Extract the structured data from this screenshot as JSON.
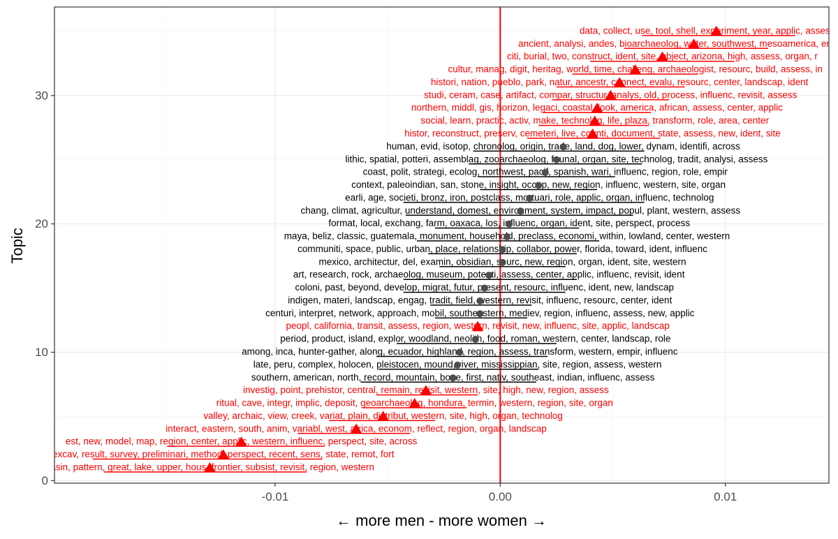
{
  "chart_data": {
    "type": "scatter",
    "title": "",
    "xlabel": "← more men  -  more women →",
    "ylabel": "Topic",
    "xlim": [
      -0.0198,
      0.0146
    ],
    "ylim": [
      -0.2,
      36.9
    ],
    "x_ticks": [
      {
        "value": -0.01,
        "label": "-0.01"
      },
      {
        "value": 0.0,
        "label": "0.00"
      },
      {
        "value": 0.01,
        "label": "0.01"
      }
    ],
    "y_ticks": [
      {
        "value": 0,
        "label": "0"
      },
      {
        "value": 10,
        "label": "10"
      },
      {
        "value": 20,
        "label": "20"
      },
      {
        "value": 30,
        "label": "30"
      }
    ],
    "reference_line": {
      "x": 0.0,
      "color": "#ff0000"
    },
    "grid": true,
    "colors": {
      "significant": "#ff0000",
      "not_significant": "#000000",
      "point": "#4d4d4d",
      "panel_border": "#333333",
      "grid_major": "#ebebeb",
      "grid_minor": "#f4f4f4"
    },
    "points": [
      {
        "topic": 1,
        "x": -0.0129,
        "lo": -0.0176,
        "hi": -0.0086,
        "significant": true,
        "label": "basin, pattern, great, lake, upper, hous, frontier, subsist, revisit, region, western"
      },
      {
        "topic": 2,
        "x": -0.0123,
        "lo": -0.0181,
        "hi": -0.0079,
        "significant": true,
        "label": "excav, result, survey, preliminari, method, perspect, recent, sens, state, remot, fort"
      },
      {
        "topic": 3,
        "x": -0.0115,
        "lo": -0.0148,
        "hi": -0.0078,
        "significant": true,
        "label": "est, new, model, map, region, center, applic, western, influenc, perspect, site, across"
      },
      {
        "topic": 4,
        "x": -0.0064,
        "lo": -0.009,
        "hi": -0.004,
        "significant": true,
        "label": "interact, eastern, south, anim, variabl, west, africa, econom, reflect, region, organ, landscap"
      },
      {
        "topic": 5,
        "x": -0.0052,
        "lo": -0.0076,
        "hi": -0.0029,
        "significant": true,
        "label": "valley, archaic, view, creek, variat, plain, distribut, western, site, high, organ, technolog"
      },
      {
        "topic": 6,
        "x": -0.0038,
        "lo": -0.0061,
        "hi": -0.0015,
        "significant": true,
        "label": "ritual, cave, integr, implic, deposit, geoarchaeolog, hondura, termin, western, region, site, organ"
      },
      {
        "topic": 7,
        "x": -0.0033,
        "lo": -0.0055,
        "hi": -0.001,
        "significant": true,
        "label": "investig, point, prehistor, central, remain, revisit, western, site, high, new, region, assess"
      },
      {
        "topic": 8,
        "x": -0.0021,
        "lo": -0.0062,
        "hi": 0.0016,
        "significant": false,
        "label": "southern, american, north, record, mountain, bone, first, nativ, southeast, indian, influenc, assess"
      },
      {
        "topic": 9,
        "x": -0.0019,
        "lo": -0.0054,
        "hi": 0.0017,
        "significant": false,
        "label": "late, peru, complex, holocen, pleistocen, mound, river, mississippian, site, region, assess, western"
      },
      {
        "topic": 10,
        "x": -0.0018,
        "lo": -0.0055,
        "hi": 0.0021,
        "significant": false,
        "label": "among, inca, hunter-gather, along, ecuador, highland, region, assess, transform, western, empir, influenc"
      },
      {
        "topic": 11,
        "x": -0.0011,
        "lo": -0.0046,
        "hi": 0.0025,
        "significant": false,
        "label": "period, product, island, explor, woodland, neolith, food, roman, western, center, landscap, role"
      },
      {
        "topic": 12,
        "x": -0.001,
        "lo": -0.0012,
        "hi": -0.0008,
        "significant": true,
        "label": "peopl, california, transit, assess, region, western, revisit, new, influenc, site, applic, landscap"
      },
      {
        "topic": 13,
        "x": -0.0009,
        "lo": -0.0029,
        "hi": 0.0012,
        "significant": false,
        "label": "centuri, interpret, network, approach, mobil, southeastern, mediev, region, influenc, assess, new, applic"
      },
      {
        "topic": 14,
        "x": -0.0009,
        "lo": -0.0031,
        "hi": 0.0014,
        "significant": false,
        "label": "indigen, materi, landscap, engag, tradit, field, western, revisit, influenc, resourc, center, ident"
      },
      {
        "topic": 15,
        "x": -0.0007,
        "lo": -0.0043,
        "hi": 0.0029,
        "significant": false,
        "label": "coloni, past, beyond, develop, migrat, futur, present, resourc, influenc, ident, new, landscap"
      },
      {
        "topic": 16,
        "x": -0.0005,
        "lo": -0.0043,
        "hi": 0.0034,
        "significant": false,
        "label": "art, research, rock, archaeolog, museum, potenti, assess, center, applic, influenc, revisit, ident"
      },
      {
        "topic": 17,
        "x": 0.0001,
        "lo": -0.0027,
        "hi": 0.0029,
        "significant": false,
        "label": "mexico, architectur, del, examin, obsidian, sourc, new, region, organ, ident, site, western"
      },
      {
        "topic": 18,
        "x": 0.0001,
        "lo": -0.0032,
        "hi": 0.0034,
        "significant": false,
        "label": "communiti, space, public, urban, place, relationship, collabor, power, florida, toward, ident, influenc"
      },
      {
        "topic": 19,
        "x": 0.0003,
        "lo": -0.0037,
        "hi": 0.0044,
        "significant": false,
        "label": "maya, beliz, classic, guatemala, monument, household, preclass, economi, within, lowland, center, western"
      },
      {
        "topic": 20,
        "x": 0.0004,
        "lo": -0.0029,
        "hi": 0.0035,
        "significant": false,
        "label": "format, local, exchang, farm, oaxaca, los, influenc, organ, ident, site, perspect, process"
      },
      {
        "topic": 21,
        "x": 0.0009,
        "lo": -0.0042,
        "hi": 0.0059,
        "significant": false,
        "label": "chang, climat, agricultur, understand, domest, environment, system, impact, popul, plant, western, assess"
      },
      {
        "topic": 22,
        "x": 0.0013,
        "lo": -0.0043,
        "hi": 0.0064,
        "significant": false,
        "label": "earli, age, societi, bronz, iron, postclass, mortuari, role, applic, organ, influenc, technolog"
      },
      {
        "topic": 23,
        "x": 0.0017,
        "lo": -0.0009,
        "hi": 0.0043,
        "significant": false,
        "label": "context, paleoindian, san, stone, insight, occup, new, region, influenc, western, site, organ"
      },
      {
        "topic": 24,
        "x": 0.002,
        "lo": -0.001,
        "hi": 0.0051,
        "significant": false,
        "label": "coast, polit, strategi, ecolog, northwest, pacif, spanish, wari, influenc, region, role, empir"
      },
      {
        "topic": 25,
        "x": 0.0025,
        "lo": -0.0014,
        "hi": 0.0063,
        "significant": false,
        "label": "lithic, spatial, potteri, assemblag, zooarchaeolog, faunal, organ, site, technolog, tradit, analysi, assess"
      },
      {
        "topic": 26,
        "x": 0.0028,
        "lo": -0.0012,
        "hi": 0.0064,
        "significant": false,
        "label": "human, evid, isotop, chronolog, origin, trade, land, dog, lower, dynam, identifi, across"
      },
      {
        "topic": 27,
        "x": 0.0041,
        "lo": 0.0012,
        "hi": 0.0071,
        "significant": true,
        "label": "histor, reconstruct, preserv, cemeteri, live, counti, document, state, assess, new, ident, site"
      },
      {
        "topic": 28,
        "x": 0.0042,
        "lo": 0.0017,
        "hi": 0.0066,
        "significant": true,
        "label": "social, learn, practic, activ, make, technolog, life, plaza, transform, role, area, center"
      },
      {
        "topic": 29,
        "x": 0.0043,
        "lo": 0.0019,
        "hi": 0.0067,
        "significant": true,
        "label": "northern, middl, gis, horizon, legaci, coastal, look, america, african, assess, center, applic"
      },
      {
        "topic": 30,
        "x": 0.0049,
        "lo": 0.0023,
        "hi": 0.0075,
        "significant": true,
        "label": "studi, ceram, case, artifact, compar, structur, analys, old, process, influenc, revisit, assess"
      },
      {
        "topic": 31,
        "x": 0.0053,
        "lo": 0.0025,
        "hi": 0.0082,
        "significant": true,
        "label": "histori, nation, pueblo, park, natur, ancestr, connect, evalu, resourc, center, landscap, ident"
      },
      {
        "topic": 32,
        "x": 0.006,
        "lo": 0.0032,
        "hi": 0.0088,
        "significant": true,
        "label": "cultur, manag, digit, heritag, world, time, challeng, archaeologist, resourc, build, assess, in"
      },
      {
        "topic": 33,
        "x": 0.0072,
        "lo": 0.004,
        "hi": 0.0104,
        "significant": true,
        "label": "citi, burial, two, construct, ident, site, object, arizona, high, assess, organ, r"
      },
      {
        "topic": 34,
        "x": 0.0086,
        "lo": 0.0055,
        "hi": 0.0119,
        "significant": true,
        "label": "ancient, analysi, andes, bioarchaeolog, water, southwest, mesoamerica, empir, asse"
      },
      {
        "topic": 35,
        "x": 0.0096,
        "lo": 0.0063,
        "hi": 0.0131,
        "significant": true,
        "label": "data, collect, use, tool, shell, experiment, year, applic, assess, mo"
      }
    ]
  }
}
